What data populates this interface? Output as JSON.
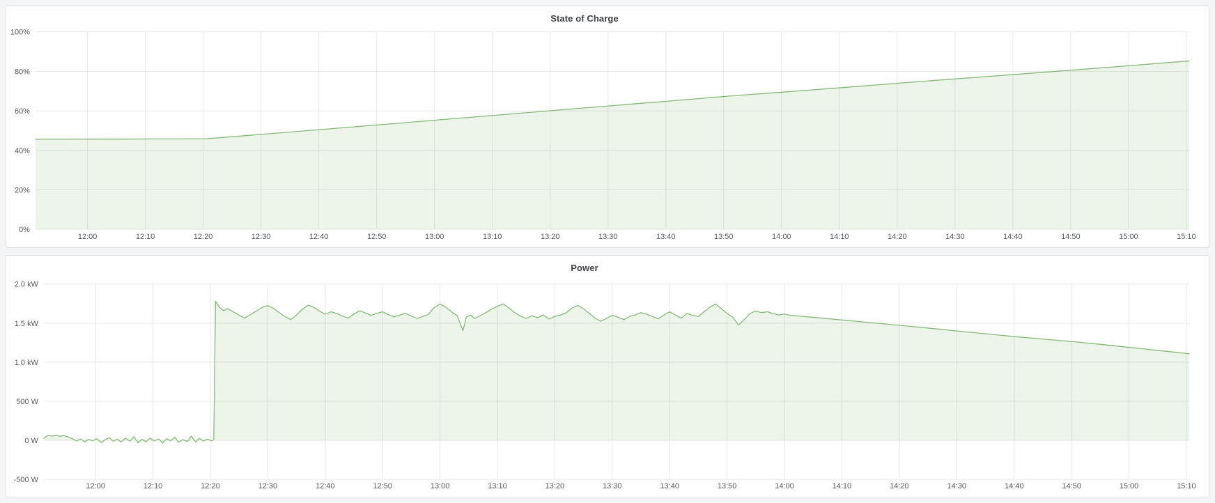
{
  "colors": {
    "page_bg": "#f4f5f7",
    "panel_bg": "#ffffff",
    "panel_border": "#dcdee0",
    "title_text": "#3f4347",
    "axis_text": "#54575c",
    "grid": "#e7e8e9",
    "series_line": "#84b977",
    "series_fill": "rgba(126,178,106,0.14)"
  },
  "panels": [
    {
      "title": "State of Charge"
    },
    {
      "title": "Power"
    }
  ],
  "chart_data": [
    {
      "type": "area",
      "title": "State of Charge",
      "xlabel": "",
      "ylabel": "",
      "unit": "percent",
      "grid": true,
      "legend": "none",
      "xlim_minutes": [
        711,
        910.5
      ],
      "ylim": [
        0,
        100
      ],
      "fill_to": 0,
      "y_ticks": [
        {
          "value": 0,
          "label": "0%"
        },
        {
          "value": 20,
          "label": "20%"
        },
        {
          "value": 40,
          "label": "40%"
        },
        {
          "value": 60,
          "label": "60%"
        },
        {
          "value": 80,
          "label": "80%"
        },
        {
          "value": 100,
          "label": "100%"
        }
      ],
      "x_ticks": [
        {
          "min": 720,
          "label": "12:00"
        },
        {
          "min": 730,
          "label": "12:10"
        },
        {
          "min": 740,
          "label": "12:20"
        },
        {
          "min": 750,
          "label": "12:30"
        },
        {
          "min": 760,
          "label": "12:40"
        },
        {
          "min": 770,
          "label": "12:50"
        },
        {
          "min": 780,
          "label": "13:00"
        },
        {
          "min": 790,
          "label": "13:10"
        },
        {
          "min": 800,
          "label": "13:20"
        },
        {
          "min": 810,
          "label": "13:30"
        },
        {
          "min": 820,
          "label": "13:40"
        },
        {
          "min": 830,
          "label": "13:50"
        },
        {
          "min": 840,
          "label": "14:00"
        },
        {
          "min": 850,
          "label": "14:10"
        },
        {
          "min": 860,
          "label": "14:20"
        },
        {
          "min": 870,
          "label": "14:30"
        },
        {
          "min": 880,
          "label": "14:40"
        },
        {
          "min": 890,
          "label": "14:50"
        },
        {
          "min": 900,
          "label": "15:00"
        },
        {
          "min": 910,
          "label": "15:10"
        }
      ],
      "series": [
        {
          "name": "State of Charge",
          "points": [
            [
              711,
              45.6
            ],
            [
              716,
              45.6
            ],
            [
              721,
              45.7
            ],
            [
              726,
              45.7
            ],
            [
              731,
              45.8
            ],
            [
              736,
              45.8
            ],
            [
              740.6,
              45.9
            ],
            [
              751,
              48.3
            ],
            [
              761,
              50.7
            ],
            [
              771,
              53.1
            ],
            [
              781,
              55.5
            ],
            [
              791,
              57.9
            ],
            [
              801,
              60.3
            ],
            [
              811,
              62.7
            ],
            [
              821,
              65.1
            ],
            [
              831,
              67.5
            ],
            [
              841,
              69.7
            ],
            [
              851,
              71.9
            ],
            [
              861,
              74.2
            ],
            [
              871,
              76.4
            ],
            [
              881,
              78.6
            ],
            [
              891,
              80.8
            ],
            [
              901,
              83.1
            ],
            [
              910.5,
              85.3
            ]
          ]
        }
      ]
    },
    {
      "type": "area",
      "title": "Power",
      "xlabel": "",
      "ylabel": "",
      "unit": "watt",
      "grid": true,
      "legend": "none",
      "xlim_minutes": [
        711,
        910.5
      ],
      "ylim": [
        -500,
        2000
      ],
      "fill_to": 0,
      "y_ticks": [
        {
          "value": -500,
          "label": "-500 W"
        },
        {
          "value": 0,
          "label": "0 W"
        },
        {
          "value": 500,
          "label": "500 W"
        },
        {
          "value": 1000,
          "label": "1.0 kW"
        },
        {
          "value": 1500,
          "label": "1.5 kW"
        },
        {
          "value": 2000,
          "label": "2.0 kW"
        }
      ],
      "x_ticks": [
        {
          "min": 720,
          "label": "12:00"
        },
        {
          "min": 730,
          "label": "12:10"
        },
        {
          "min": 740,
          "label": "12:20"
        },
        {
          "min": 750,
          "label": "12:30"
        },
        {
          "min": 760,
          "label": "12:40"
        },
        {
          "min": 770,
          "label": "12:50"
        },
        {
          "min": 780,
          "label": "13:00"
        },
        {
          "min": 790,
          "label": "13:10"
        },
        {
          "min": 800,
          "label": "13:20"
        },
        {
          "min": 810,
          "label": "13:30"
        },
        {
          "min": 820,
          "label": "13:40"
        },
        {
          "min": 830,
          "label": "13:50"
        },
        {
          "min": 840,
          "label": "14:00"
        },
        {
          "min": 850,
          "label": "14:10"
        },
        {
          "min": 860,
          "label": "14:20"
        },
        {
          "min": 870,
          "label": "14:30"
        },
        {
          "min": 880,
          "label": "14:40"
        },
        {
          "min": 890,
          "label": "14:50"
        },
        {
          "min": 900,
          "label": "15:00"
        },
        {
          "min": 910,
          "label": "15:10"
        }
      ],
      "series": [
        {
          "name": "Power",
          "points": [
            [
              711,
              25
            ],
            [
              711.7,
              62
            ],
            [
              712.4,
              55
            ],
            [
              713.1,
              65
            ],
            [
              713.8,
              52
            ],
            [
              714.5,
              60
            ],
            [
              715.2,
              45
            ],
            [
              716,
              20
            ],
            [
              716.7,
              -8
            ],
            [
              717.4,
              18
            ],
            [
              718.1,
              -20
            ],
            [
              718.8,
              12
            ],
            [
              719.5,
              -5
            ],
            [
              720.2,
              22
            ],
            [
              721,
              -28
            ],
            [
              721.7,
              8
            ],
            [
              722.4,
              35
            ],
            [
              723.1,
              -12
            ],
            [
              723.8,
              15
            ],
            [
              724.5,
              -22
            ],
            [
              725.2,
              28
            ],
            [
              726,
              -10
            ],
            [
              726.7,
              45
            ],
            [
              727.4,
              -30
            ],
            [
              728.1,
              12
            ],
            [
              728.8,
              -18
            ],
            [
              729.5,
              30
            ],
            [
              730.2,
              -8
            ],
            [
              731,
              18
            ],
            [
              731.7,
              -35
            ],
            [
              732.4,
              22
            ],
            [
              733.1,
              -5
            ],
            [
              733.8,
              40
            ],
            [
              734.5,
              -25
            ],
            [
              735.2,
              10
            ],
            [
              736,
              -15
            ],
            [
              736.7,
              55
            ],
            [
              737.4,
              -20
            ],
            [
              738.1,
              25
            ],
            [
              738.8,
              -10
            ],
            [
              739.5,
              15
            ],
            [
              740.2,
              -5
            ],
            [
              740.6,
              8
            ],
            [
              740.9,
              1780
            ],
            [
              741.6,
              1700
            ],
            [
              742.3,
              1660
            ],
            [
              743,
              1685
            ],
            [
              744,
              1645
            ],
            [
              745,
              1600
            ],
            [
              746,
              1565
            ],
            [
              747,
              1610
            ],
            [
              748,
              1655
            ],
            [
              749,
              1700
            ],
            [
              750,
              1725
            ],
            [
              751,
              1690
            ],
            [
              752,
              1635
            ],
            [
              753,
              1585
            ],
            [
              754,
              1545
            ],
            [
              755,
              1605
            ],
            [
              756,
              1675
            ],
            [
              757,
              1730
            ],
            [
              758,
              1705
            ],
            [
              759,
              1655
            ],
            [
              760,
              1615
            ],
            [
              761,
              1645
            ],
            [
              762,
              1625
            ],
            [
              763,
              1590
            ],
            [
              764,
              1565
            ],
            [
              765,
              1615
            ],
            [
              766,
              1660
            ],
            [
              767,
              1630
            ],
            [
              768,
              1600
            ],
            [
              769,
              1625
            ],
            [
              770,
              1645
            ],
            [
              771,
              1610
            ],
            [
              772,
              1580
            ],
            [
              773,
              1605
            ],
            [
              774,
              1625
            ],
            [
              775,
              1590
            ],
            [
              776,
              1560
            ],
            [
              777,
              1585
            ],
            [
              778,
              1615
            ],
            [
              779,
              1700
            ],
            [
              780,
              1745
            ],
            [
              781,
              1705
            ],
            [
              782,
              1645
            ],
            [
              783,
              1595
            ],
            [
              784,
              1405
            ],
            [
              784.6,
              1580
            ],
            [
              785.4,
              1605
            ],
            [
              786,
              1560
            ],
            [
              787,
              1595
            ],
            [
              788,
              1635
            ],
            [
              789,
              1680
            ],
            [
              790,
              1715
            ],
            [
              791,
              1745
            ],
            [
              792,
              1695
            ],
            [
              793,
              1635
            ],
            [
              794,
              1590
            ],
            [
              795,
              1560
            ],
            [
              796,
              1595
            ],
            [
              797,
              1570
            ],
            [
              798,
              1605
            ],
            [
              799,
              1555
            ],
            [
              800,
              1585
            ],
            [
              801,
              1605
            ],
            [
              802,
              1635
            ],
            [
              803,
              1695
            ],
            [
              804,
              1725
            ],
            [
              805,
              1685
            ],
            [
              806,
              1625
            ],
            [
              807,
              1565
            ],
            [
              808,
              1525
            ],
            [
              809,
              1560
            ],
            [
              810,
              1600
            ],
            [
              811,
              1575
            ],
            [
              812,
              1545
            ],
            [
              813,
              1585
            ],
            [
              814,
              1605
            ],
            [
              815,
              1635
            ],
            [
              816,
              1615
            ],
            [
              817,
              1585
            ],
            [
              818,
              1555
            ],
            [
              819,
              1605
            ],
            [
              820,
              1645
            ],
            [
              821,
              1605
            ],
            [
              822,
              1565
            ],
            [
              823,
              1625
            ],
            [
              824,
              1600
            ],
            [
              825,
              1585
            ],
            [
              826,
              1645
            ],
            [
              827,
              1705
            ],
            [
              828,
              1745
            ],
            [
              829,
              1685
            ],
            [
              830,
              1625
            ],
            [
              831,
              1575
            ],
            [
              832,
              1475
            ],
            [
              833,
              1545
            ],
            [
              834,
              1625
            ],
            [
              835,
              1655
            ],
            [
              836,
              1635
            ],
            [
              837,
              1645
            ],
            [
              838,
              1625
            ],
            [
              839,
              1605
            ],
            [
              840,
              1615
            ],
            [
              841,
              1600
            ],
            [
              846,
              1568
            ],
            [
              851,
              1535
            ],
            [
              856,
              1500
            ],
            [
              861,
              1465
            ],
            [
              866,
              1430
            ],
            [
              871,
              1393
            ],
            [
              876,
              1357
            ],
            [
              881,
              1322
            ],
            [
              886,
              1290
            ],
            [
              891,
              1258
            ],
            [
              896,
              1222
            ],
            [
              901,
              1183
            ],
            [
              906,
              1144
            ],
            [
              910.5,
              1108
            ]
          ]
        }
      ]
    }
  ]
}
